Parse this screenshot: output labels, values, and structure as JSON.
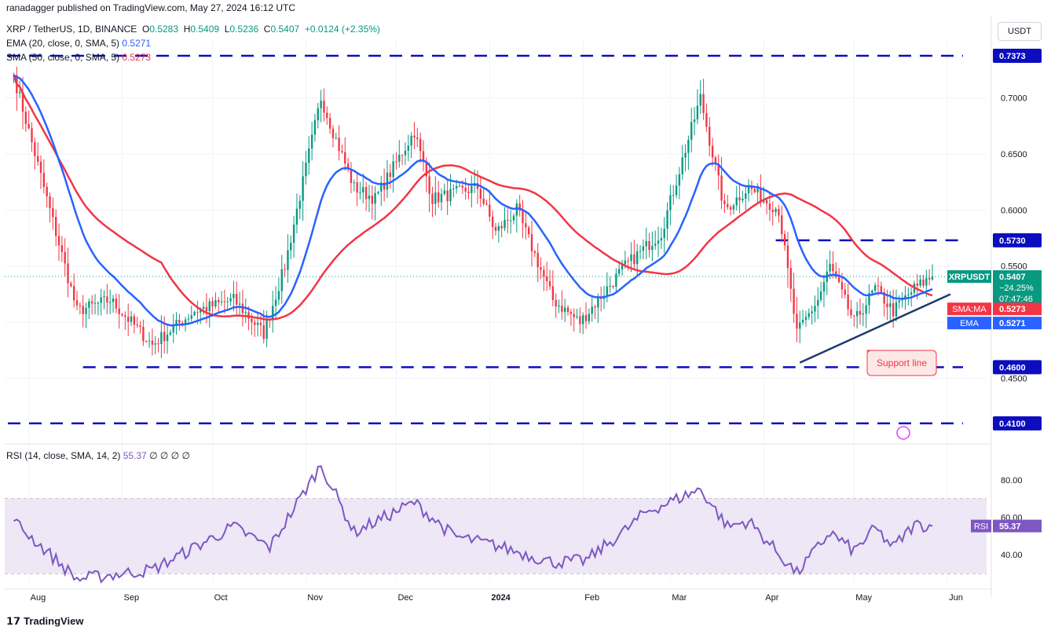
{
  "header": {
    "published": "ranadagger published on TradingView.com, May 27, 2024 16:12 UTC",
    "symbol": "XRP / TetherUS, 1D, BINANCE",
    "ohlc": {
      "o_label": "O",
      "o": "0.5283",
      "h_label": "H",
      "h": "0.5409",
      "l_label": "L",
      "l": "0.5236",
      "c_label": "C",
      "c": "0.5407",
      "change": "+0.0124 (+2.35%)"
    },
    "ema_label": "EMA (20, close, 0, SMA, 5)",
    "ema_value": "0.5271",
    "sma_label": "SMA (50, close, 0, SMA, 5)",
    "sma_value": "0.5273",
    "rsi_label": "RSI (14, close, SMA, 14, 2)",
    "rsi_value": "55.37",
    "rsi_extra": "∅ ∅ ∅ ∅",
    "currency": "USDT"
  },
  "branding": {
    "logo_text": "TradingView"
  },
  "colors": {
    "up": "#089981",
    "down": "#f23645",
    "ema": "#2962ff",
    "sma": "#f23645",
    "level": "#0c0dbf",
    "support": "#1f3a6e",
    "rsi": "#7e57c2",
    "rsi_band": "#ede7f6"
  },
  "chart_data": [
    {
      "type": "candlestick",
      "title": "",
      "x_ticks": [
        "Aug",
        "Sep",
        "Oct",
        "Nov",
        "Dec",
        "2024",
        "Feb",
        "Mar",
        "Apr",
        "May",
        "Jun"
      ],
      "y_ticks": [
        "0.4500",
        "0.5000",
        "0.5500",
        "0.6000",
        "0.6500",
        "0.7000"
      ],
      "ylim": [
        0.398,
        0.752
      ],
      "levels": [
        {
          "value": 0.7373,
          "label": "0.7373"
        },
        {
          "value": 0.573,
          "label": "0.5730"
        },
        {
          "value": 0.46,
          "label": "0.4600"
        },
        {
          "value": 0.41,
          "label": "0.4100"
        }
      ],
      "annotations": [
        {
          "text": "Support line",
          "from": [
            "2024-04-13",
            0.464
          ],
          "to": [
            "2024-06-02",
            0.525
          ]
        }
      ],
      "price_tag": {
        "label": "XRPUSDT",
        "value": "0.5407",
        "change": "−24.25%",
        "countdown": "07:47:46"
      },
      "sma_tag": {
        "label": "SMA:MA",
        "value": "0.5273"
      },
      "ema_tag": {
        "label": "EMA",
        "value": "0.5271"
      },
      "key_points": [
        {
          "date": "2023-07-27",
          "close": 0.72
        },
        {
          "date": "2023-08-17",
          "close": 0.51
        },
        {
          "date": "2023-08-28",
          "close": 0.52
        },
        {
          "date": "2023-09-11",
          "close": 0.48
        },
        {
          "date": "2023-09-25",
          "close": 0.51
        },
        {
          "date": "2023-10-08",
          "close": 0.52
        },
        {
          "date": "2023-10-18",
          "close": 0.49
        },
        {
          "date": "2023-10-25",
          "close": 0.55
        },
        {
          "date": "2023-11-06",
          "close": 0.7
        },
        {
          "date": "2023-11-10",
          "close": 0.67
        },
        {
          "date": "2023-11-17",
          "close": 0.62
        },
        {
          "date": "2023-11-24",
          "close": 0.61
        },
        {
          "date": "2023-12-07",
          "close": 0.67
        },
        {
          "date": "2023-12-13",
          "close": 0.61
        },
        {
          "date": "2023-12-28",
          "close": 0.62
        },
        {
          "date": "2024-01-03",
          "close": 0.58
        },
        {
          "date": "2024-01-10",
          "close": 0.6
        },
        {
          "date": "2024-01-22",
          "close": 0.52
        },
        {
          "date": "2024-01-31",
          "close": 0.5
        },
        {
          "date": "2024-02-15",
          "close": 0.55
        },
        {
          "date": "2024-02-27",
          "close": 0.58
        },
        {
          "date": "2024-03-11",
          "close": 0.7
        },
        {
          "date": "2024-03-19",
          "close": 0.6
        },
        {
          "date": "2024-03-27",
          "close": 0.62
        },
        {
          "date": "2024-04-06",
          "close": 0.6
        },
        {
          "date": "2024-04-12",
          "close": 0.49
        },
        {
          "date": "2024-04-19",
          "close": 0.52
        },
        {
          "date": "2024-04-23",
          "close": 0.55
        },
        {
          "date": "2024-05-01",
          "close": 0.5
        },
        {
          "date": "2024-05-08",
          "close": 0.53
        },
        {
          "date": "2024-05-14",
          "close": 0.51
        },
        {
          "date": "2024-05-21",
          "close": 0.53
        },
        {
          "date": "2024-05-27",
          "close": 0.5407
        }
      ]
    },
    {
      "type": "line",
      "title": "",
      "y_ticks": [
        "40.00",
        "60.00",
        "80.00"
      ],
      "ylim": [
        25,
        95
      ],
      "bands": [
        30,
        70
      ],
      "value_tag": {
        "label": "RSI",
        "value": "55.37"
      },
      "key_points": [
        {
          "date": "2023-07-27",
          "rsi": 58
        },
        {
          "date": "2023-08-17",
          "rsi": 27
        },
        {
          "date": "2023-09-11",
          "rsi": 32
        },
        {
          "date": "2023-10-08",
          "rsi": 55
        },
        {
          "date": "2023-10-20",
          "rsi": 44
        },
        {
          "date": "2023-11-06",
          "rsi": 88
        },
        {
          "date": "2023-11-17",
          "rsi": 52
        },
        {
          "date": "2023-12-07",
          "rsi": 68
        },
        {
          "date": "2023-12-20",
          "rsi": 50
        },
        {
          "date": "2024-01-03",
          "rsi": 45
        },
        {
          "date": "2024-01-22",
          "rsi": 36
        },
        {
          "date": "2024-02-02",
          "rsi": 37
        },
        {
          "date": "2024-02-15",
          "rsi": 53
        },
        {
          "date": "2024-02-22",
          "rsi": 63
        },
        {
          "date": "2024-03-11",
          "rsi": 75
        },
        {
          "date": "2024-03-20",
          "rsi": 55
        },
        {
          "date": "2024-03-27",
          "rsi": 58
        },
        {
          "date": "2024-04-12",
          "rsi": 30
        },
        {
          "date": "2024-04-23",
          "rsi": 52
        },
        {
          "date": "2024-05-01",
          "rsi": 42
        },
        {
          "date": "2024-05-08",
          "rsi": 54
        },
        {
          "date": "2024-05-14",
          "rsi": 44
        },
        {
          "date": "2024-05-21",
          "rsi": 56
        },
        {
          "date": "2024-05-27",
          "rsi": 55.37
        }
      ]
    }
  ]
}
